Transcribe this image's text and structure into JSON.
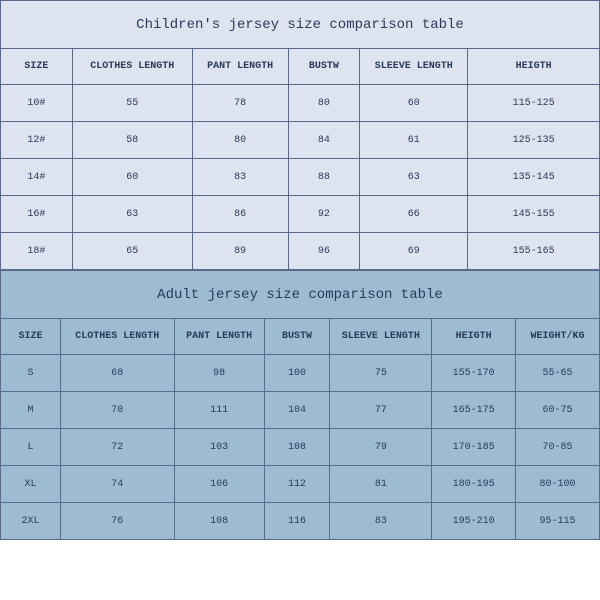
{
  "children": {
    "title": "Children's jersey size comparison table",
    "title_bg": "#dde4f0",
    "cell_bg": "#dde4f0",
    "border_color": "#5a6a8a",
    "text_color": "#2a3a5a",
    "title_fontsize": 14,
    "header_fontsize": 10,
    "cell_fontsize": 10,
    "columns": [
      "SIZE",
      "CLOTHES LENGTH",
      "PANT LENGTH",
      "BUSTW",
      "SLEEVE LENGTH",
      "HEIGTH"
    ],
    "col_widths_pct": [
      12,
      20,
      16,
      12,
      18,
      22
    ],
    "rows": [
      [
        "10#",
        "55",
        "78",
        "80",
        "60",
        "115-125"
      ],
      [
        "12#",
        "58",
        "80",
        "84",
        "61",
        "125-135"
      ],
      [
        "14#",
        "60",
        "83",
        "88",
        "63",
        "135-145"
      ],
      [
        "16#",
        "63",
        "86",
        "92",
        "66",
        "145-155"
      ],
      [
        "18#",
        "65",
        "89",
        "96",
        "69",
        "155-165"
      ]
    ]
  },
  "adult": {
    "title": "Adult jersey size comparison table",
    "title_bg": "#9dbcd4",
    "cell_bg": "#9dbcd4",
    "border_color": "#5a6a8a",
    "text_color": "#2a3a5a",
    "title_fontsize": 14,
    "header_fontsize": 10,
    "cell_fontsize": 10,
    "columns": [
      "SIZE",
      "CLOTHES LENGTH",
      "PANT LENGTH",
      "BUSTW",
      "SLEEVE LENGTH",
      "HEIGTH",
      "WEIGHT/KG"
    ],
    "col_widths_pct": [
      10,
      19,
      15,
      11,
      17,
      14,
      14
    ],
    "rows": [
      [
        "S",
        "68",
        "98",
        "100",
        "75",
        "155-170",
        "55-65"
      ],
      [
        "M",
        "70",
        "111",
        "104",
        "77",
        "165-175",
        "60-75"
      ],
      [
        "L",
        "72",
        "103",
        "108",
        "79",
        "170-185",
        "70-85"
      ],
      [
        "XL",
        "74",
        "106",
        "112",
        "81",
        "180-195",
        "80-100"
      ],
      [
        "2XL",
        "76",
        "108",
        "116",
        "83",
        "195-210",
        "95-115"
      ]
    ]
  }
}
